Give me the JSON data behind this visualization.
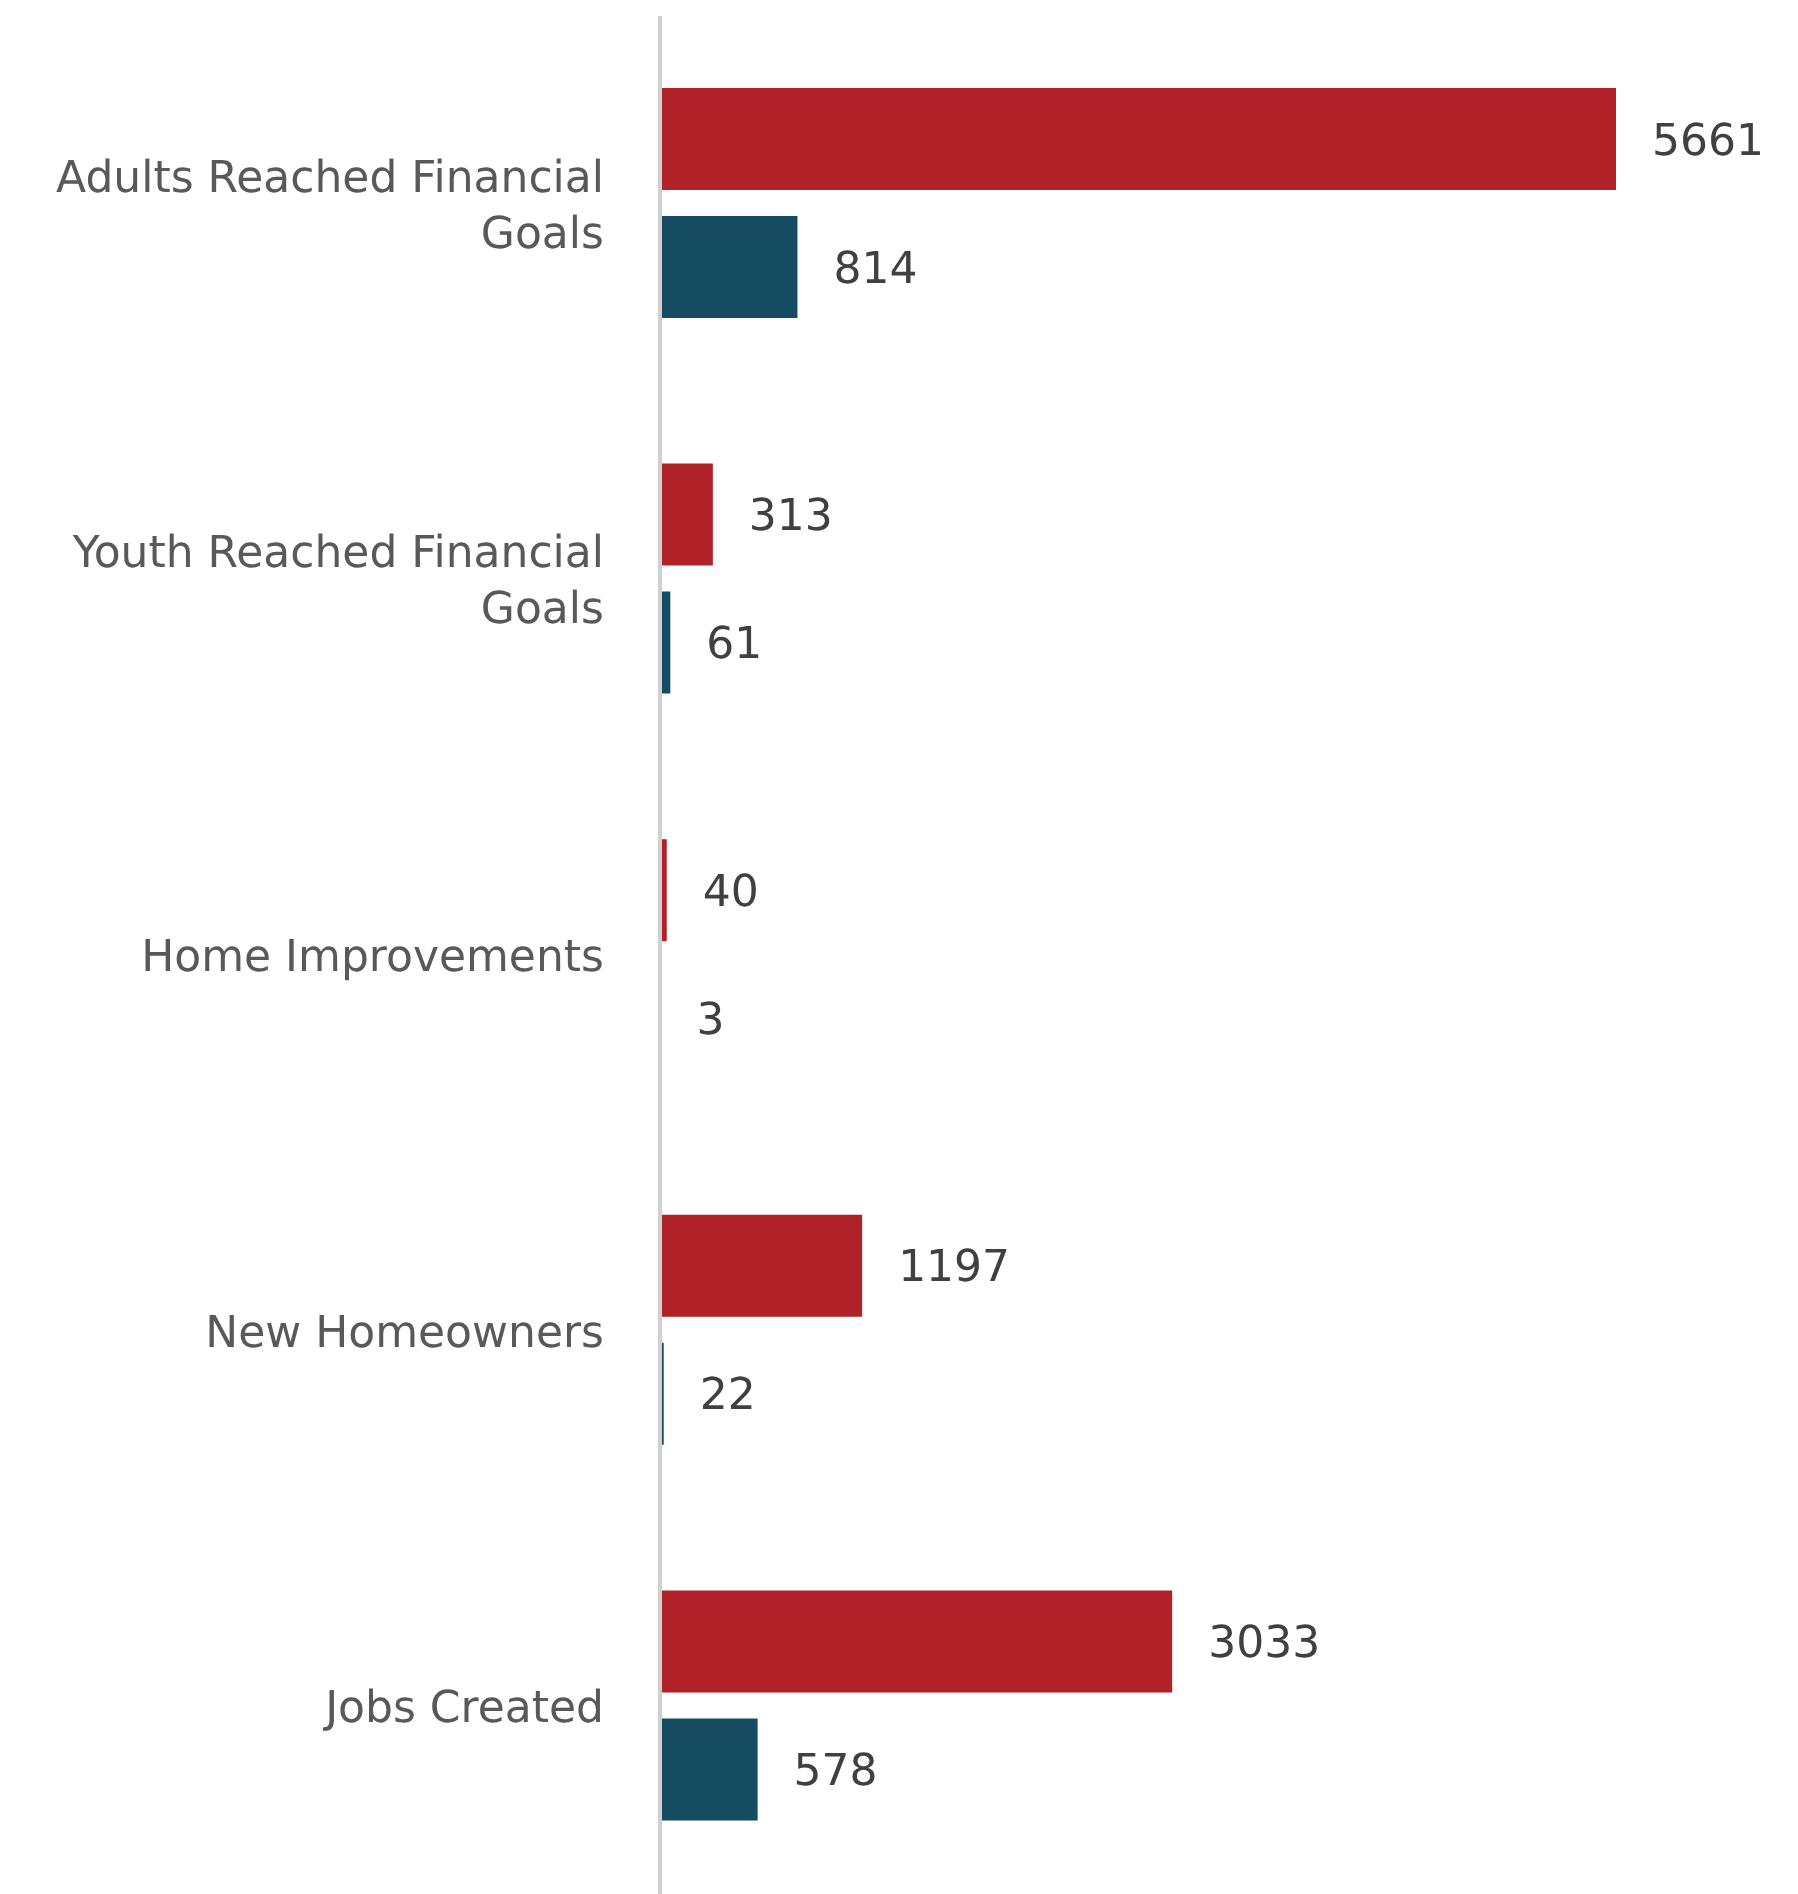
{
  "chart_data": {
    "type": "bar",
    "orientation": "horizontal",
    "categories": [
      "Adults Reached Financial Goals",
      "Youth Reached Financial Goals",
      "Home Improvements",
      "New Homeowners",
      "Jobs Created"
    ],
    "series": [
      {
        "color": "#b02228",
        "values": [
          5661,
          313,
          40,
          1197,
          3033
        ]
      },
      {
        "color": "#164c61",
        "values": [
          814,
          61,
          3,
          22,
          578
        ]
      }
    ],
    "data_labels": true,
    "tick_labels": "y",
    "legend": false
  }
}
